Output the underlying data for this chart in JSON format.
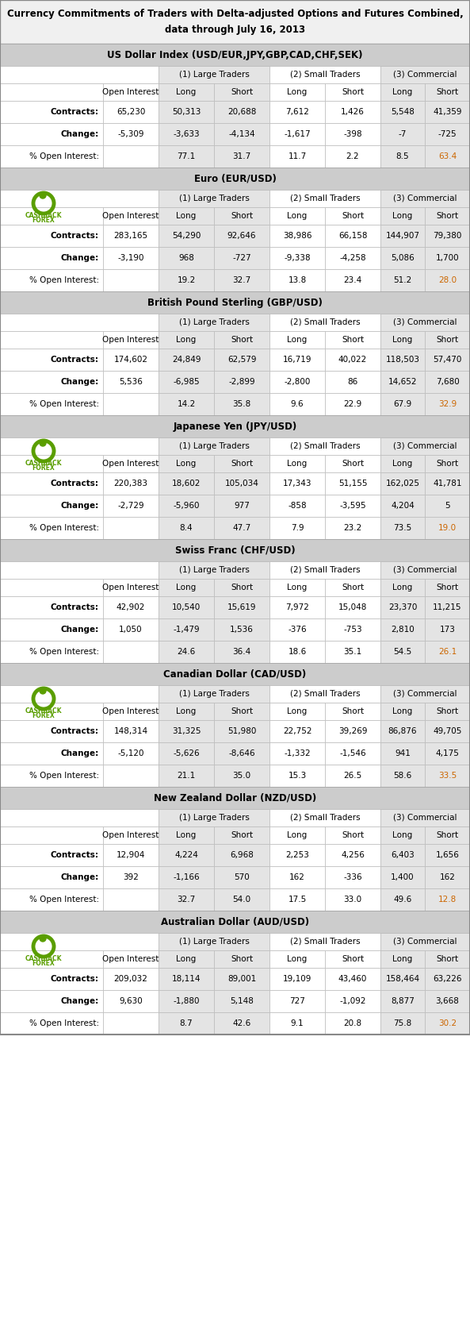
{
  "title_line1": "Currency Commitments of Traders with Delta-adjusted Options and Futures Combined,",
  "title_line2": "data through July 16, 2013",
  "sections": [
    {
      "name": "US Dollar Index (USD/EUR,JPY,GBP,CAD,CHF,SEK)",
      "has_logo": false,
      "contracts": {
        "oi": "65,230",
        "lt_long": "50,313",
        "lt_short": "20,688",
        "st_long": "7,612",
        "st_short": "1,426",
        "com_long": "5,548",
        "com_short": "41,359"
      },
      "change": {
        "oi": "-5,309",
        "lt_long": "-3,633",
        "lt_short": "-4,134",
        "st_long": "-1,617",
        "st_short": "-398",
        "com_long": "-7",
        "com_short": "-725"
      },
      "pct": {
        "lt_long": "77.1",
        "lt_short": "31.7",
        "st_long": "11.7",
        "st_short": "2.2",
        "com_long": "8.5",
        "com_short": "63.4"
      }
    },
    {
      "name": "Euro (EUR/USD)",
      "has_logo": true,
      "contracts": {
        "oi": "283,165",
        "lt_long": "54,290",
        "lt_short": "92,646",
        "st_long": "38,986",
        "st_short": "66,158",
        "com_long": "144,907",
        "com_short": "79,380"
      },
      "change": {
        "oi": "-3,190",
        "lt_long": "968",
        "lt_short": "-727",
        "st_long": "-9,338",
        "st_short": "-4,258",
        "com_long": "5,086",
        "com_short": "1,700"
      },
      "pct": {
        "lt_long": "19.2",
        "lt_short": "32.7",
        "st_long": "13.8",
        "st_short": "23.4",
        "com_long": "51.2",
        "com_short": "28.0"
      }
    },
    {
      "name": "British Pound Sterling (GBP/USD)",
      "has_logo": false,
      "contracts": {
        "oi": "174,602",
        "lt_long": "24,849",
        "lt_short": "62,579",
        "st_long": "16,719",
        "st_short": "40,022",
        "com_long": "118,503",
        "com_short": "57,470"
      },
      "change": {
        "oi": "5,536",
        "lt_long": "-6,985",
        "lt_short": "-2,899",
        "st_long": "-2,800",
        "st_short": "86",
        "com_long": "14,652",
        "com_short": "7,680"
      },
      "pct": {
        "lt_long": "14.2",
        "lt_short": "35.8",
        "st_long": "9.6",
        "st_short": "22.9",
        "com_long": "67.9",
        "com_short": "32.9"
      }
    },
    {
      "name": "Japanese Yen (JPY/USD)",
      "has_logo": true,
      "contracts": {
        "oi": "220,383",
        "lt_long": "18,602",
        "lt_short": "105,034",
        "st_long": "17,343",
        "st_short": "51,155",
        "com_long": "162,025",
        "com_short": "41,781"
      },
      "change": {
        "oi": "-2,729",
        "lt_long": "-5,960",
        "lt_short": "977",
        "st_long": "-858",
        "st_short": "-3,595",
        "com_long": "4,204",
        "com_short": "5"
      },
      "pct": {
        "lt_long": "8.4",
        "lt_short": "47.7",
        "st_long": "7.9",
        "st_short": "23.2",
        "com_long": "73.5",
        "com_short": "19.0"
      }
    },
    {
      "name": "Swiss Franc (CHF/USD)",
      "has_logo": false,
      "contracts": {
        "oi": "42,902",
        "lt_long": "10,540",
        "lt_short": "15,619",
        "st_long": "7,972",
        "st_short": "15,048",
        "com_long": "23,370",
        "com_short": "11,215"
      },
      "change": {
        "oi": "1,050",
        "lt_long": "-1,479",
        "lt_short": "1,536",
        "st_long": "-376",
        "st_short": "-753",
        "com_long": "2,810",
        "com_short": "173"
      },
      "pct": {
        "lt_long": "24.6",
        "lt_short": "36.4",
        "st_long": "18.6",
        "st_short": "35.1",
        "com_long": "54.5",
        "com_short": "26.1"
      }
    },
    {
      "name": "Canadian Dollar (CAD/USD)",
      "has_logo": true,
      "contracts": {
        "oi": "148,314",
        "lt_long": "31,325",
        "lt_short": "51,980",
        "st_long": "22,752",
        "st_short": "39,269",
        "com_long": "86,876",
        "com_short": "49,705"
      },
      "change": {
        "oi": "-5,120",
        "lt_long": "-5,626",
        "lt_short": "-8,646",
        "st_long": "-1,332",
        "st_short": "-1,546",
        "com_long": "941",
        "com_short": "4,175"
      },
      "pct": {
        "lt_long": "21.1",
        "lt_short": "35.0",
        "st_long": "15.3",
        "st_short": "26.5",
        "com_long": "58.6",
        "com_short": "33.5"
      }
    },
    {
      "name": "New Zealand Dollar (NZD/USD)",
      "has_logo": false,
      "contracts": {
        "oi": "12,904",
        "lt_long": "4,224",
        "lt_short": "6,968",
        "st_long": "2,253",
        "st_short": "4,256",
        "com_long": "6,403",
        "com_short": "1,656"
      },
      "change": {
        "oi": "392",
        "lt_long": "-1,166",
        "lt_short": "570",
        "st_long": "162",
        "st_short": "-336",
        "com_long": "1,400",
        "com_short": "162"
      },
      "pct": {
        "lt_long": "32.7",
        "lt_short": "54.0",
        "st_long": "17.5",
        "st_short": "33.0",
        "com_long": "49.6",
        "com_short": "12.8"
      }
    },
    {
      "name": "Australian Dollar (AUD/USD)",
      "has_logo": true,
      "contracts": {
        "oi": "209,032",
        "lt_long": "18,114",
        "lt_short": "89,001",
        "st_long": "19,109",
        "st_short": "43,460",
        "com_long": "158,464",
        "com_short": "63,226"
      },
      "change": {
        "oi": "9,630",
        "lt_long": "-1,880",
        "lt_short": "5,148",
        "st_long": "727",
        "st_short": "-1,092",
        "com_long": "8,877",
        "com_short": "3,668"
      },
      "pct": {
        "lt_long": "8.7",
        "lt_short": "42.6",
        "st_long": "9.1",
        "st_short": "20.8",
        "com_long": "75.8",
        "com_short": "30.2"
      }
    }
  ],
  "bg_title": "#f0f0f0",
  "bg_section_header": "#cccccc",
  "bg_lt_col": "#e4e4e4",
  "bg_com_col": "#e4e4e4",
  "bg_white": "#ffffff",
  "text_dark": "#000000",
  "text_orange": "#cc6600",
  "logo_green": "#5a9e00",
  "border_color": "#bbbbbb"
}
